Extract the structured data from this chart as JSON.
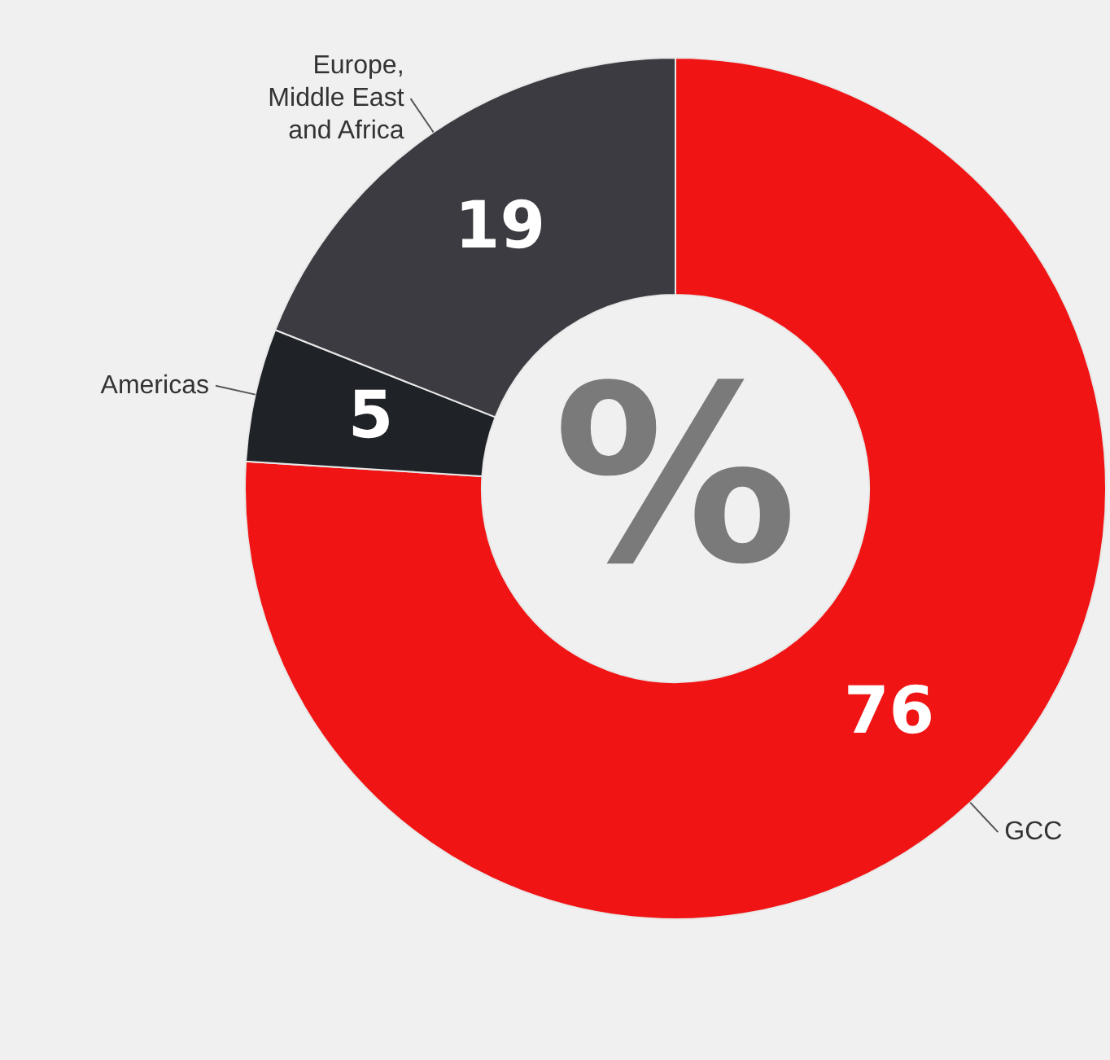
{
  "chart_data": {
    "type": "donut",
    "categories": [
      "GCC",
      "Americas",
      "Europe, Middle East and Africa"
    ],
    "values": [
      76,
      5,
      19
    ],
    "colors": [
      "#f01414",
      "#1f2226",
      "#3d3b42"
    ],
    "data_labels": true,
    "legend": false,
    "annotations": [
      "%"
    ]
  }
}
